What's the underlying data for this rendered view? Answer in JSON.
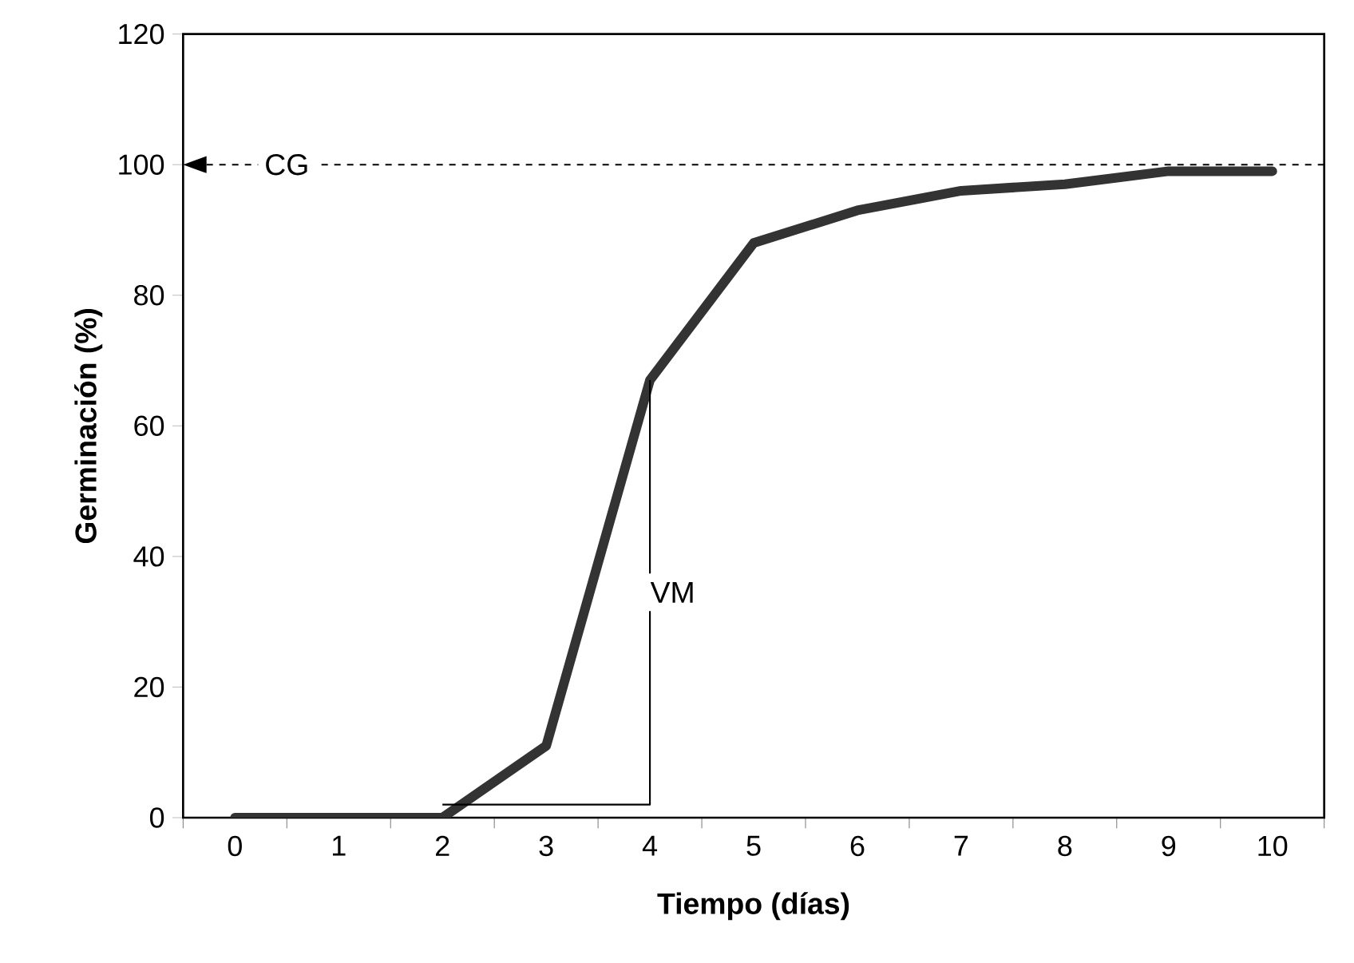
{
  "chart_data": {
    "type": "line",
    "xlabel": "Tiempo (días)",
    "ylabel": "Germinación (%)",
    "categories": [
      "0",
      "1",
      "2",
      "3",
      "4",
      "5",
      "6",
      "7",
      "8",
      "9",
      "10"
    ],
    "series": [
      {
        "color": "#333333",
        "values": [
          0,
          0,
          0,
          11,
          67,
          88,
          93,
          96,
          97,
          99,
          99
        ]
      },
      {
        "type": "step",
        "color": "#000000",
        "values": [
          null,
          null,
          2,
          2,
          67,
          null,
          null,
          null,
          null,
          null,
          null
        ]
      }
    ],
    "ylim": [
      0,
      120
    ],
    "yticks": [
      0,
      20,
      40,
      60,
      80,
      100,
      120
    ],
    "grid": false,
    "marker": "none",
    "line_style": "solid",
    "ref_lines": [
      {
        "axis": "y",
        "value": 100,
        "label": "CG",
        "line_style": "dashed"
      }
    ],
    "annotations": [
      "VM"
    ]
  }
}
